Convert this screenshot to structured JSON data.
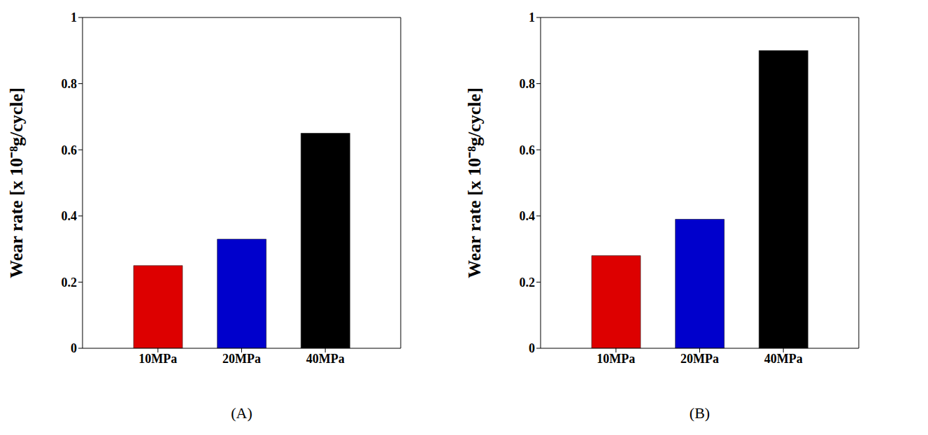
{
  "chart_data": [
    {
      "type": "bar",
      "title": "(A)",
      "y_label": "Wear rate [x 10⁻⁸g/cycle]",
      "categories": [
        "10MPa",
        "20MPa",
        "40MPa"
      ],
      "values": [
        0.25,
        0.33,
        0.65
      ],
      "colors": [
        "#dd0000",
        "#0000cc",
        "#000000"
      ],
      "ylim": [
        0,
        1
      ],
      "yticks": [
        0,
        0.2,
        0.4,
        0.6,
        0.8,
        1
      ],
      "grid": false
    },
    {
      "type": "bar",
      "title": "(B)",
      "y_label": "Wear rate [x 10⁻⁸g/cycle]",
      "categories": [
        "10MPa",
        "20MPa",
        "40MPa"
      ],
      "values": [
        0.28,
        0.39,
        0.9
      ],
      "colors": [
        "#dd0000",
        "#0000cc",
        "#000000"
      ],
      "ylim": [
        0,
        1
      ],
      "yticks": [
        0,
        0.2,
        0.4,
        0.6,
        0.8,
        1
      ],
      "grid": false
    }
  ]
}
